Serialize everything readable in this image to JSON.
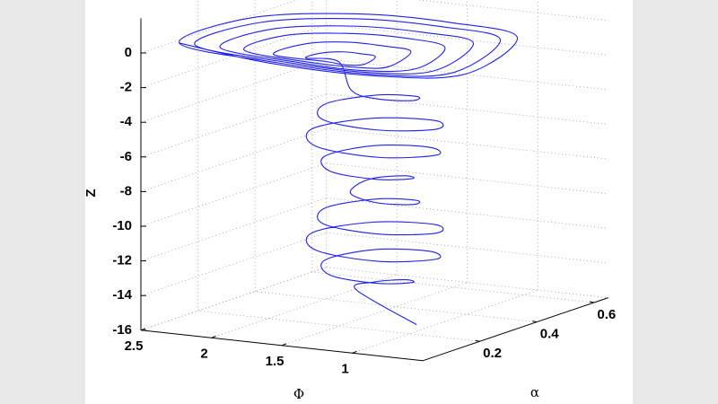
{
  "chart_data": {
    "type": "line3d",
    "xlabel": "Φ",
    "ylabel": "α",
    "zlabel": "Z",
    "color": "#2020e8",
    "xlim": [
      0.5,
      2.5
    ],
    "ylim": [
      0,
      0.65
    ],
    "zlim": [
      -16,
      2
    ],
    "xticks": [
      1,
      1.5,
      2,
      2.5
    ],
    "yticks": [
      0.2,
      0.4,
      0.6
    ],
    "zticks": [
      -16,
      -14,
      -12,
      -10,
      -8,
      -6,
      -4,
      -2,
      0
    ],
    "grid": true,
    "x": [
      1.05,
      1.44,
      1.39,
      1.19,
      1.04,
      1.15,
      1.46,
      1.66,
      1.49,
      1.1,
      0.87,
      1.08,
      1.52,
      1.75,
      1.52,
      1.08,
      0.87,
      1.1,
      1.49,
      1.66,
      1.46,
      1.15,
      1.04,
      1.19,
      1.39,
      1.44,
      1.39,
      1.19,
      1.04,
      1.15,
      1.46,
      1.66,
      1.49,
      1.1,
      0.87,
      1.08,
      1.52,
      1.75,
      1.52,
      1.08,
      0.87,
      1.1,
      1.49,
      1.66,
      1.46,
      1.15,
      1.04,
      1.19,
      1.39,
      1.3,
      1.53,
      1.53,
      1.43,
      1.3,
      1.18,
      1.12,
      1.21,
      1.37,
      1.76,
      1.76,
      1.56,
      1.3,
      1.07,
      0.95,
      1.12,
      1.44,
      1.99,
      2.0,
      1.68,
      1.3,
      0.95,
      0.77,
      1.04,
      1.51,
      2.16,
      2.17,
      1.78,
      1.3,
      0.87,
      0.64,
      0.97,
      1.56,
      2.34,
      2.34,
      1.88,
      1.3,
      0.78,
      0.51,
      0.9,
      1.62,
      2.45,
      2.46,
      1.94,
      1.3,
      0.72,
      0.42,
      0.86,
      1.65,
      2.45
    ],
    "y": [
      0.25,
      0.23,
      0.27,
      0.28,
      0.23,
      0.16,
      0.15,
      0.23,
      0.32,
      0.32,
      0.23,
      0.13,
      0.13,
      0.23,
      0.33,
      0.33,
      0.23,
      0.14,
      0.14,
      0.23,
      0.31,
      0.3,
      0.23,
      0.18,
      0.19,
      0.23,
      0.27,
      0.28,
      0.23,
      0.16,
      0.15,
      0.23,
      0.32,
      0.32,
      0.23,
      0.13,
      0.13,
      0.23,
      0.33,
      0.33,
      0.23,
      0.14,
      0.14,
      0.23,
      0.31,
      0.3,
      0.23,
      0.18,
      0.19,
      0.1,
      0.1,
      0.15,
      0.18,
      0.18,
      0.17,
      0.1,
      0.08,
      0.09,
      0.1,
      0.21,
      0.26,
      0.26,
      0.24,
      0.1,
      0.07,
      0.07,
      0.11,
      0.26,
      0.33,
      0.34,
      0.3,
      0.11,
      0.05,
      0.06,
      0.11,
      0.3,
      0.39,
      0.4,
      0.36,
      0.11,
      0.04,
      0.05,
      0.11,
      0.34,
      0.45,
      0.46,
      0.41,
      0.11,
      0.03,
      0.04,
      0.11,
      0.37,
      0.49,
      0.5,
      0.44,
      0.11,
      0.02,
      0.03,
      0.11
    ],
    "z": [
      -15.8,
      -14,
      -13.75,
      -13.5,
      -13.25,
      -13,
      -12.75,
      -12.5,
      -12.25,
      -12,
      -11.75,
      -11.5,
      -11.25,
      -11,
      -10.75,
      -10.5,
      -10.25,
      -10,
      -9.75,
      -9.5,
      -9.25,
      -9,
      -8.75,
      -8.5,
      -8.25,
      -8,
      -7.75,
      -7.5,
      -7.25,
      -7,
      -6.75,
      -6.5,
      -6.25,
      -6,
      -5.75,
      -5.5,
      -5.25,
      -5,
      -4.75,
      -4.5,
      -4.25,
      -4,
      -3.75,
      -3.5,
      -3.25,
      -3,
      -2.75,
      -2.5,
      -2.25,
      0,
      0,
      0,
      0,
      0,
      0,
      0,
      0,
      0,
      0,
      0,
      0,
      0,
      0,
      0,
      0,
      0,
      0,
      0,
      0,
      0,
      0,
      0,
      0,
      0,
      0,
      0,
      0,
      0,
      0,
      0,
      0,
      0,
      0,
      0,
      0,
      0,
      0,
      0,
      0,
      0,
      0,
      0,
      0,
      0,
      0,
      0,
      0,
      0,
      0
    ]
  }
}
